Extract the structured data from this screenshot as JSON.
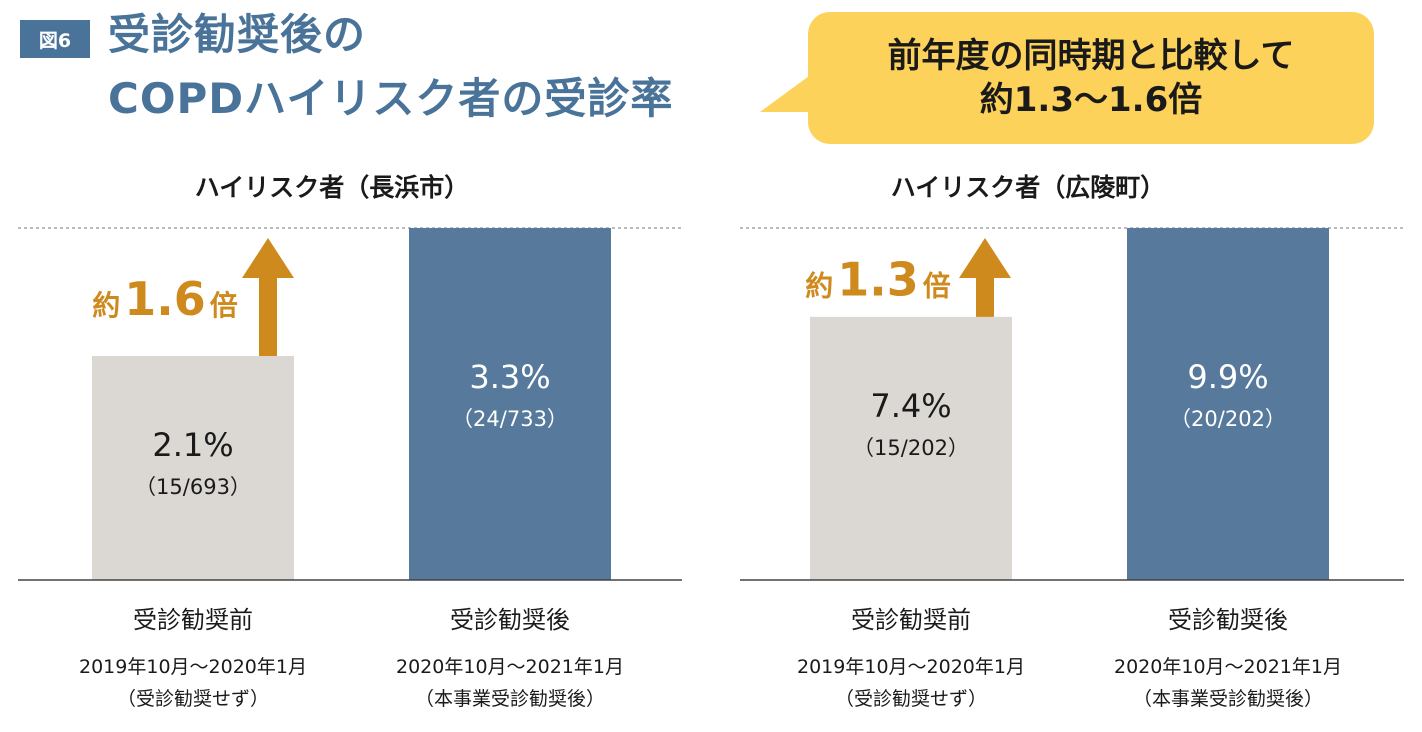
{
  "header": {
    "figure_badge": "図6",
    "title_line1": "受診勧奨後の",
    "title_line2": "COPDハイリスク者の受診率"
  },
  "callout": {
    "line1": "前年度の同時期と比較して",
    "line2": "約1.3〜1.6倍"
  },
  "colors": {
    "before_bar": "#dbd7d3",
    "after_bar": "#56799c",
    "arrow": "#cf8a1e",
    "title": "#4a7399",
    "callout_bg": "#fdd25a"
  },
  "chart_data": [
    {
      "type": "bar",
      "title": "ハイリスク者（長浜市）",
      "categories": [
        {
          "name": "受診勧奨前",
          "period": "2019年10月〜2020年1月",
          "note": "（受診勧奨せず）"
        },
        {
          "name": "受診勧奨後",
          "period": "2020年10月〜2021年1月",
          "note": "（本事業受診勧奨後）"
        }
      ],
      "values": [
        2.1,
        3.3
      ],
      "value_labels": [
        "2.1%",
        "3.3%"
      ],
      "count_labels": [
        "（15/693）",
        "（24/733）"
      ],
      "ratio_label": {
        "prefix": "約",
        "number": "1.6",
        "suffix": "倍"
      }
    },
    {
      "type": "bar",
      "title": "ハイリスク者（広陵町）",
      "categories": [
        {
          "name": "受診勧奨前",
          "period": "2019年10月〜2020年1月",
          "note": "（受診勧奨せず）"
        },
        {
          "name": "受診勧奨後",
          "period": "2020年10月〜2021年1月",
          "note": "（本事業受診勧奨後）"
        }
      ],
      "values": [
        7.4,
        9.9
      ],
      "value_labels": [
        "7.4%",
        "9.9%"
      ],
      "count_labels": [
        "（15/202）",
        "（20/202）"
      ],
      "ratio_label": {
        "prefix": "約",
        "number": "1.3",
        "suffix": "倍"
      }
    }
  ]
}
